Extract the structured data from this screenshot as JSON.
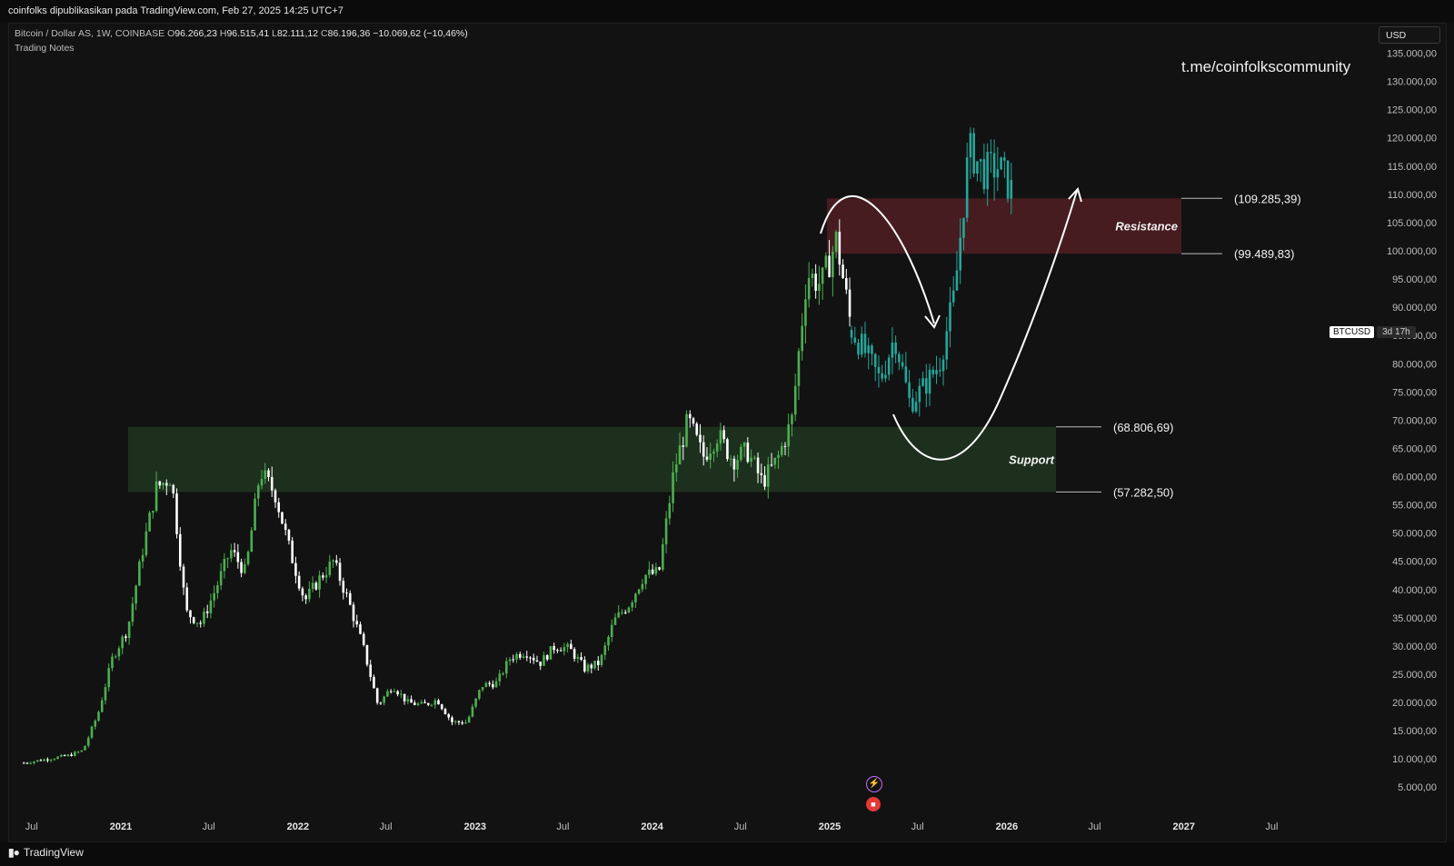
{
  "header": {
    "published": "coinfolks dipublikasikan pada TradingView.com, Feb 27, 2025 14:25 UTC+7"
  },
  "legend": {
    "symbol": "Bitcoin / Dollar AS, 1W, COINBASE",
    "o_label": "O",
    "o_value": "96.266,23",
    "h_label": "H",
    "h_value": "96.515,41",
    "l_label": "L",
    "l_value": "82.111,12",
    "c_label": "C",
    "c_value": "86.196,36",
    "change": "−10.069,62 (−10,46%)",
    "indicator": "Trading Notes"
  },
  "currency_label": "USD",
  "watermark": "t.me/coinfolkscommunity",
  "symbol_tag": {
    "symbol": "BTCUSD",
    "countdown": "3d 17h"
  },
  "footer": {
    "brand": "TradingView"
  },
  "icons": {
    "event_top": "lightning-icon",
    "event_bottom": "us-flag-icon",
    "brand": "tradingview-logo-icon"
  },
  "colors": {
    "up": "#4caf50",
    "down": "#ffffff",
    "projection": "#26a69a",
    "resistance": "#4a1d22",
    "support": "#1f3320"
  },
  "chart_data": {
    "type": "candlestick",
    "interval": "1W",
    "y_scale": "linear",
    "y_ticks": [
      "135.000,00",
      "130.000,00",
      "125.000,00",
      "120.000,00",
      "115.000,00",
      "110.000,00",
      "105.000,00",
      "100.000,00",
      "95.000,00",
      "90.000,00",
      "85.000,00",
      "80.000,00",
      "75.000,00",
      "70.000,00",
      "65.000,00",
      "60.000,00",
      "55.000,00",
      "50.000,00",
      "45.000,00",
      "40.000,00",
      "35.000,00",
      "30.000,00",
      "25.000,00",
      "20.000,00",
      "15.000,00",
      "10.000,00",
      "5.000,00"
    ],
    "x_ticks": [
      "Jul",
      "2021",
      "Jul",
      "2022",
      "Jul",
      "2023",
      "Jul",
      "2024",
      "Jul",
      "2025",
      "Jul",
      "2026",
      "Jul",
      "2027",
      "Jul"
    ],
    "zones": [
      {
        "name": "Resistance",
        "low": 99489.83,
        "high": 109285.39,
        "low_label": "(99.489,83)",
        "high_label": "(109.285,39)"
      },
      {
        "name": "Support",
        "low": 57282.5,
        "high": 68806.69,
        "low_label": "(57.282,50)",
        "high_label": "(68.806,69)"
      }
    ],
    "price_anchors": [
      [
        "2020-06",
        9300
      ],
      [
        "2020-09",
        10600
      ],
      [
        "2020-10",
        11500
      ],
      [
        "2020-11",
        18000
      ],
      [
        "2020-12",
        28000
      ],
      [
        "2021-01",
        33000
      ],
      [
        "2021-02",
        47000
      ],
      [
        "2021-03",
        58000
      ],
      [
        "2021-04",
        60000
      ],
      [
        "2021-05",
        36000
      ],
      [
        "2021-06",
        34000
      ],
      [
        "2021-07",
        40000
      ],
      [
        "2021-08",
        47000
      ],
      [
        "2021-09",
        43000
      ],
      [
        "2021-10",
        61000
      ],
      [
        "2021-11",
        57000
      ],
      [
        "2021-12",
        47000
      ],
      [
        "2022-01",
        38000
      ],
      [
        "2022-02",
        42000
      ],
      [
        "2022-03",
        45000
      ],
      [
        "2022-04",
        38000
      ],
      [
        "2022-05",
        30000
      ],
      [
        "2022-06",
        19500
      ],
      [
        "2022-07",
        23000
      ],
      [
        "2022-08",
        20000
      ],
      [
        "2022-09",
        19500
      ],
      [
        "2022-10",
        20500
      ],
      [
        "2022-11",
        16500
      ],
      [
        "2022-12",
        16500
      ],
      [
        "2023-01",
        23000
      ],
      [
        "2023-02",
        23500
      ],
      [
        "2023-03",
        28000
      ],
      [
        "2023-04",
        29000
      ],
      [
        "2023-05",
        27000
      ],
      [
        "2023-06",
        30000
      ],
      [
        "2023-07",
        29500
      ],
      [
        "2023-08",
        26000
      ],
      [
        "2023-09",
        27000
      ],
      [
        "2023-10",
        34500
      ],
      [
        "2023-11",
        37500
      ],
      [
        "2023-12",
        42500
      ],
      [
        "2024-01",
        43000
      ],
      [
        "2024-02",
        61000
      ],
      [
        "2024-03",
        70000
      ],
      [
        "2024-04",
        63500
      ],
      [
        "2024-05",
        67500
      ],
      [
        "2024-06",
        63000
      ],
      [
        "2024-07",
        64500
      ],
      [
        "2024-08",
        59000
      ],
      [
        "2024-09",
        63000
      ],
      [
        "2024-10",
        70000
      ],
      [
        "2024-11",
        96000
      ],
      [
        "2024-12",
        94000
      ],
      [
        "2025-01",
        102000
      ],
      [
        "2025-02",
        86200
      ]
    ],
    "projection_anchors": [
      [
        "2025-02",
        86000
      ],
      [
        "2025-03",
        82000
      ],
      [
        "2025-04",
        77000
      ],
      [
        "2025-05",
        85000
      ],
      [
        "2025-06",
        73000
      ],
      [
        "2025-07",
        76000
      ],
      [
        "2025-08",
        80000
      ],
      [
        "2025-09",
        92000
      ],
      [
        "2025-10",
        118000
      ],
      [
        "2025-11",
        114000
      ],
      [
        "2025-12",
        115000
      ],
      [
        "2026-01",
        110000
      ]
    ]
  }
}
